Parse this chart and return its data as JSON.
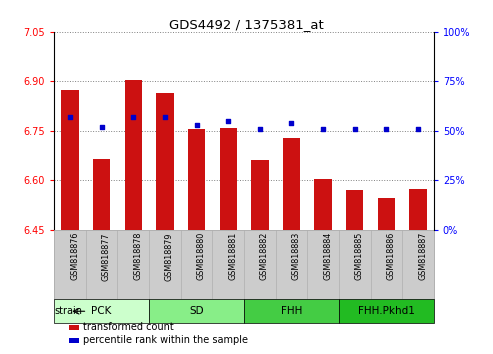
{
  "title": "GDS4492 / 1375381_at",
  "samples": [
    "GSM818876",
    "GSM818877",
    "GSM818878",
    "GSM818879",
    "GSM818880",
    "GSM818881",
    "GSM818882",
    "GSM818883",
    "GSM818884",
    "GSM818885",
    "GSM818886",
    "GSM818887"
  ],
  "transformed_count": [
    6.875,
    6.665,
    6.905,
    6.865,
    6.755,
    6.76,
    6.662,
    6.728,
    6.605,
    6.57,
    6.548,
    6.574
  ],
  "percentile_rank": [
    57,
    52,
    57,
    57,
    53,
    55,
    51,
    54,
    51,
    51,
    51,
    51
  ],
  "ylim": [
    6.45,
    7.05
  ],
  "y2lim": [
    0,
    100
  ],
  "yticks": [
    6.45,
    6.6,
    6.75,
    6.9,
    7.05
  ],
  "y2ticks": [
    0,
    25,
    50,
    75,
    100
  ],
  "bar_color": "#cc1111",
  "dot_color": "#0000cc",
  "strain_groups": [
    {
      "label": "PCK",
      "start": 0,
      "end": 3,
      "color": "#ccffcc"
    },
    {
      "label": "SD",
      "start": 3,
      "end": 6,
      "color": "#88ee88"
    },
    {
      "label": "FHH",
      "start": 6,
      "end": 9,
      "color": "#44cc44"
    },
    {
      "label": "FHH.Pkhd1",
      "start": 9,
      "end": 12,
      "color": "#22bb22"
    }
  ],
  "strain_label": "strain",
  "legend_items": [
    {
      "label": "transformed count",
      "color": "#cc1111"
    },
    {
      "label": "percentile rank within the sample",
      "color": "#0000cc"
    }
  ],
  "tick_bg_color": "#cccccc",
  "tick_border_color": "#aaaaaa",
  "fig_width": 4.93,
  "fig_height": 3.54
}
